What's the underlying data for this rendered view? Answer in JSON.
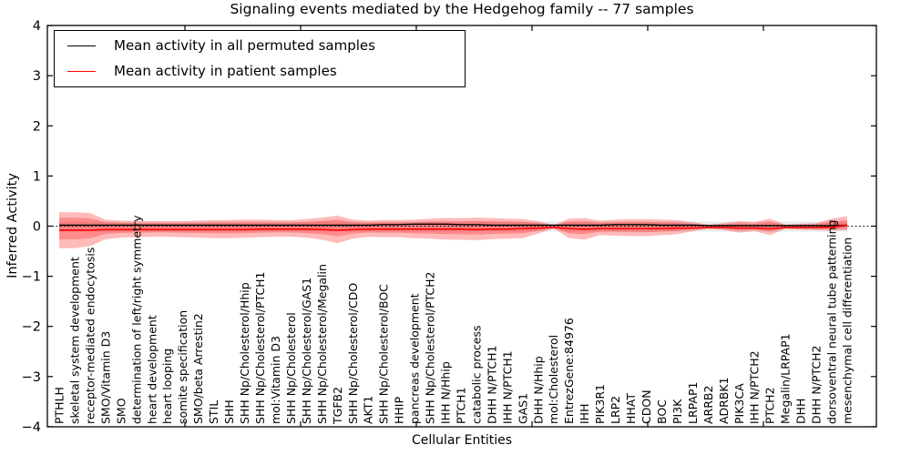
{
  "title": "Signaling events mediated by the Hedgehog family -- 77 samples",
  "legend": {
    "items": [
      {
        "label": "Mean activity in all permuted samples",
        "color": "#000000"
      },
      {
        "label": "Mean activity in patient samples",
        "color": "#ff0000"
      }
    ]
  },
  "axes": {
    "xlabel": "Cellular Entities",
    "ylabel": "Inferred Activity",
    "ylim": [
      -4,
      4
    ],
    "ytick_labels": [
      "4",
      "3",
      "2",
      "1",
      "0",
      "−1",
      "−2",
      "−3",
      "−4"
    ]
  },
  "chart_data": {
    "type": "line",
    "title": "Signaling events mediated by the Hedgehog family -- 77 samples",
    "xlabel": "Cellular Entities",
    "ylabel": "Inferred Activity",
    "ylim": [
      -4,
      4
    ],
    "yticks": [
      4,
      3,
      2,
      1,
      0,
      -1,
      -2,
      -3,
      -4
    ],
    "grid": false,
    "legend_position": "upper left",
    "zero_line": "dotted black at y=0",
    "x_label_style": "rotated 90, anchored at plot bottom inside axes",
    "categories": [
      "PTHLH",
      "skeletal system development",
      "receptor-mediated endocytosis",
      "SMO/Vitamin D3",
      "SMO",
      "determination of left/right symmetry",
      "heart development",
      "heart looping",
      "somite specification",
      "SMO/beta Arrestin2",
      "STIL",
      "SHH",
      "SHH Np/Cholesterol/Hhip",
      "SHH Np/Cholesterol/PTCH1",
      "mol:Vitamin D3",
      "SHH Np/Cholesterol",
      "SHH Np/Cholesterol/GAS1",
      "SHH Np/Cholesterol/Megalin",
      "TGFB2",
      "SHH Np/Cholesterol/CDO",
      "AKT1",
      "SHH Np/Cholesterol/BOC",
      "HHIP",
      "pancreas development",
      "SHH Np/Cholesterol/PTCH2",
      "IHH N/Hhip",
      "PTCH1",
      "catabolic process",
      "DHH N/PTCH1",
      "IHH N/PTCH1",
      "GAS1",
      "DHH N/Hhip",
      "mol:Cholesterol",
      "EntrezGene:84976",
      "IHH",
      "PIK3R1",
      "LRP2",
      "HHAT",
      "CDON",
      "BOC",
      "PI3K",
      "LRPAP1",
      "ARRB2",
      "ADRBK1",
      "PIK3CA",
      "IHH N/PTCH2",
      "PTCH2",
      "Megalin/LRPAP1",
      "DHH",
      "DHH N/PTCH2",
      "dorsoventral neural tube patterning",
      "mesenchymal cell differentiation"
    ],
    "series": [
      {
        "name": "Mean activity in all permuted samples",
        "color": "#000000",
        "values": [
          0.02,
          0.02,
          0.02,
          0.02,
          0.02,
          0.02,
          0.02,
          0.02,
          0.02,
          0.02,
          0.02,
          0.02,
          0.02,
          0.02,
          0.02,
          0.02,
          0.02,
          0.02,
          0.02,
          0.02,
          0.02,
          0.03,
          0.03,
          0.04,
          0.04,
          0.04,
          0.03,
          0.03,
          0.02,
          0.02,
          0.02,
          0.02,
          0.02,
          0.02,
          0.02,
          0.02,
          0.03,
          0.03,
          0.03,
          0.02,
          0.02,
          0.02,
          0.01,
          0.01,
          0.01,
          0.01,
          0.01,
          0.01,
          0.01,
          0.01,
          0.01,
          0.02
        ],
        "band": {
          "upper": 0.09,
          "lower": -0.11,
          "style": "approximately constant gray shading"
        }
      },
      {
        "name": "Mean activity in patient samples",
        "color": "#ff0000",
        "values": [
          -0.08,
          -0.08,
          -0.08,
          -0.07,
          -0.07,
          -0.07,
          -0.07,
          -0.07,
          -0.07,
          -0.07,
          -0.07,
          -0.07,
          -0.07,
          -0.06,
          -0.06,
          -0.06,
          -0.06,
          -0.07,
          -0.08,
          -0.07,
          -0.06,
          -0.06,
          -0.06,
          -0.06,
          -0.06,
          -0.06,
          -0.06,
          -0.07,
          -0.06,
          -0.06,
          -0.05,
          -0.04,
          -0.03,
          -0.05,
          -0.06,
          -0.05,
          -0.05,
          -0.05,
          -0.05,
          -0.05,
          -0.04,
          -0.04,
          -0.03,
          -0.03,
          -0.04,
          -0.04,
          -0.05,
          -0.03,
          -0.03,
          -0.03,
          -0.02,
          0.02
        ],
        "band_outer": {
          "upper": [
            0.28,
            0.28,
            0.26,
            0.13,
            0.11,
            0.1,
            0.1,
            0.1,
            0.1,
            0.11,
            0.12,
            0.12,
            0.13,
            0.13,
            0.12,
            0.12,
            0.14,
            0.17,
            0.21,
            0.13,
            0.11,
            0.12,
            0.12,
            0.13,
            0.15,
            0.16,
            0.16,
            0.17,
            0.16,
            0.15,
            0.14,
            0.1,
            0.02,
            0.15,
            0.16,
            0.11,
            0.13,
            0.14,
            0.14,
            0.13,
            0.12,
            0.08,
            0.03,
            0.06,
            0.1,
            0.08,
            0.15,
            0.03,
            0.05,
            0.06,
            0.15,
            0.2
          ],
          "lower": [
            -0.44,
            -0.44,
            -0.4,
            -0.26,
            -0.23,
            -0.22,
            -0.21,
            -0.21,
            -0.22,
            -0.23,
            -0.24,
            -0.24,
            -0.23,
            -0.22,
            -0.21,
            -0.21,
            -0.23,
            -0.27,
            -0.34,
            -0.25,
            -0.21,
            -0.22,
            -0.22,
            -0.24,
            -0.25,
            -0.27,
            -0.27,
            -0.28,
            -0.26,
            -0.25,
            -0.24,
            -0.15,
            -0.04,
            -0.24,
            -0.27,
            -0.18,
            -0.19,
            -0.2,
            -0.2,
            -0.18,
            -0.16,
            -0.1,
            -0.05,
            -0.08,
            -0.13,
            -0.1,
            -0.18,
            -0.05,
            -0.07,
            -0.08,
            -0.09,
            -0.08
          ]
        },
        "band_inner_scale": 0.6
      }
    ]
  }
}
